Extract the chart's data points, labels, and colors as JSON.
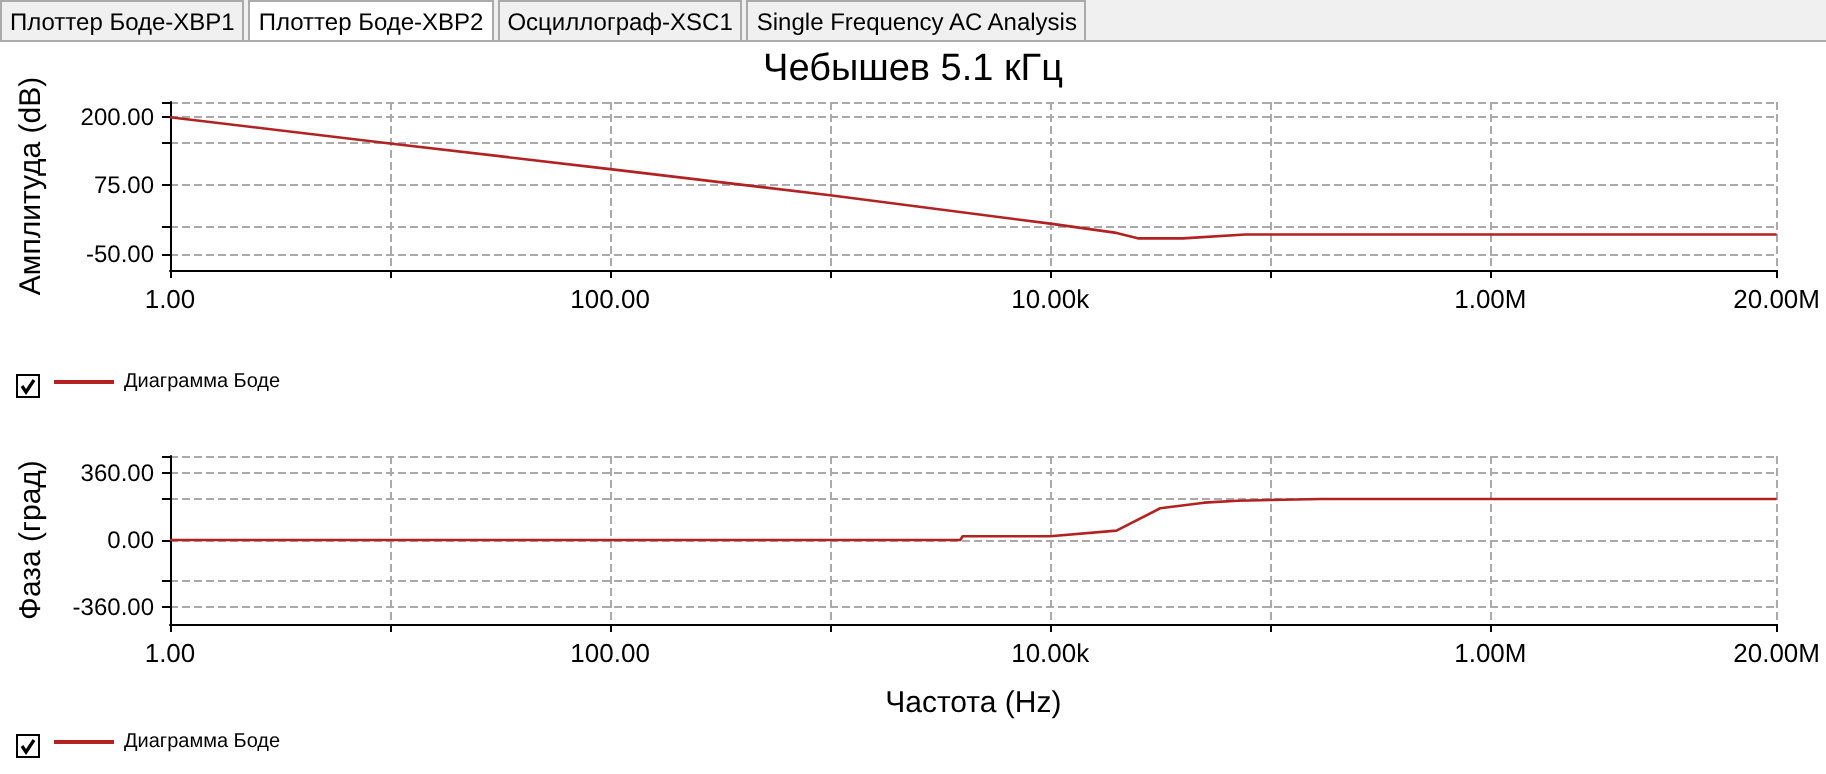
{
  "chart_data": [
    {
      "type": "line",
      "title": "Чебышев 5.1 кГц",
      "ylabel": "Амплитуда (dB)",
      "annotations": [
        "Плоттер Боде-XBP1",
        "Плоттер Боде-XBP2",
        "Осциллограф-XSC1",
        "Single Frequency AC Analysis"
      ],
      "log": "x",
      "grid": true,
      "legend": "bottom left",
      "marker": "none",
      "xlim": [
        1,
        20000000
      ],
      "xticks": [
        {
          "value": 1,
          "label": "1.00"
        },
        {
          "value": 10,
          "label": null
        },
        {
          "value": 100,
          "label": "100.00"
        },
        {
          "value": 1000,
          "label": null
        },
        {
          "value": 10000,
          "label": "10.00k"
        },
        {
          "value": 100000,
          "label": null
        },
        {
          "value": 1000000,
          "label": "1.00M"
        },
        {
          "value": 20000000,
          "label": "20.00M"
        }
      ],
      "ylim": [
        -80,
        228
      ],
      "yticks": [
        {
          "value": 228,
          "label": null
        },
        {
          "value": 200,
          "label": "200.00"
        },
        {
          "value": 152,
          "label": null
        },
        {
          "value": 75,
          "label": "75.00"
        },
        {
          "value": 0,
          "label": null
        },
        {
          "value": -50,
          "label": "-50.00"
        }
      ],
      "series": [
        {
          "name": "Диаграмма Боде",
          "color": "#b22222",
          "x": [
            1,
            10,
            100,
            1000,
            10000,
            20000,
            25000,
            40000,
            77000,
            20000000
          ],
          "values": [
            200,
            152,
            105,
            57,
            5,
            -12,
            -22,
            -22,
            -15,
            -15
          ]
        }
      ]
    },
    {
      "type": "line",
      "xlabel": "Частота (Hz)",
      "ylabel": "Фаза (град)",
      "log": "x",
      "grid": true,
      "legend": "bottom left",
      "marker": "none",
      "xlim": [
        1,
        20000000
      ],
      "xticks": [
        {
          "value": 1,
          "label": "1.00"
        },
        {
          "value": 10,
          "label": null
        },
        {
          "value": 100,
          "label": "100.00"
        },
        {
          "value": 1000,
          "label": null
        },
        {
          "value": 10000,
          "label": "10.00k"
        },
        {
          "value": 100000,
          "label": null
        },
        {
          "value": 1000000,
          "label": "1.00M"
        },
        {
          "value": 20000000,
          "label": "20.00M"
        }
      ],
      "ylim": [
        -450,
        450
      ],
      "yticks": [
        {
          "value": 450,
          "label": null
        },
        {
          "value": 360,
          "label": "360.00"
        },
        {
          "value": 220,
          "label": null
        },
        {
          "value": 0,
          "label": "0.00"
        },
        {
          "value": -220,
          "label": null
        },
        {
          "value": -360,
          "label": "-360.00"
        }
      ],
      "series": [
        {
          "name": "Диаграмма Боде",
          "color": "#b22222",
          "x": [
            1,
            3900,
            4000,
            10000,
            20000,
            31600,
            50000,
            71000,
            170000,
            20000000
          ],
          "values": [
            0,
            0,
            20,
            20,
            50,
            170,
            200,
            210,
            220,
            220
          ]
        }
      ]
    }
  ]
}
